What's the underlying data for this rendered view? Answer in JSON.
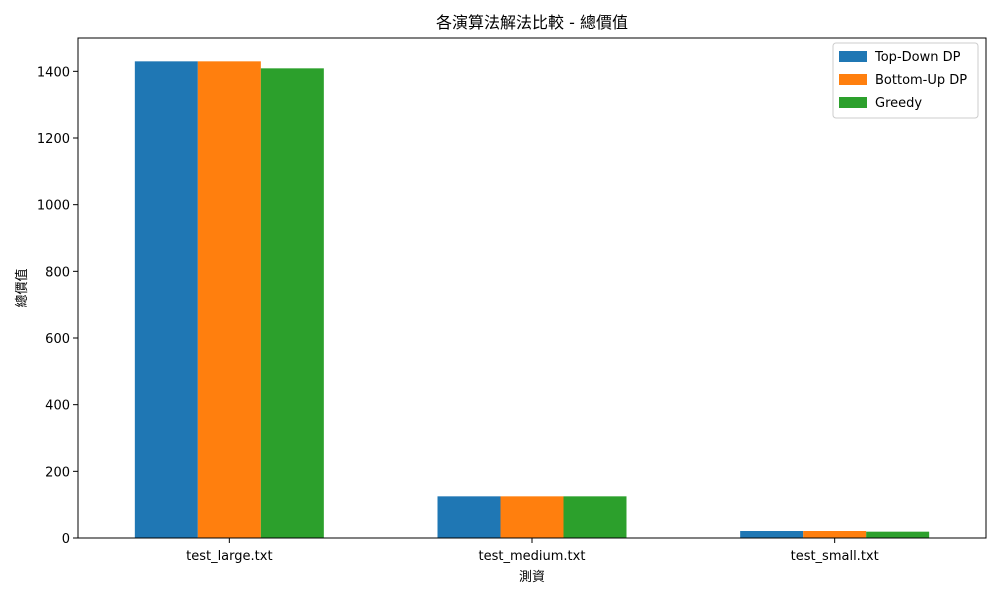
{
  "chart_data": {
    "type": "bar",
    "title": "各演算法解法比較 - 總價值",
    "xlabel": "測資",
    "ylabel": "總價值",
    "categories": [
      "test_large.txt",
      "test_medium.txt",
      "test_small.txt"
    ],
    "series": [
      {
        "name": "Top-Down DP",
        "color": "#1f77b4",
        "values": [
          1430,
          125,
          21
        ]
      },
      {
        "name": "Bottom-Up DP",
        "color": "#ff7f0e",
        "values": [
          1430,
          125,
          21
        ]
      },
      {
        "name": "Greedy",
        "color": "#2ca02c",
        "values": [
          1409,
          125,
          19
        ]
      }
    ],
    "ylim": [
      0,
      1500
    ],
    "yticks": [
      0,
      200,
      400,
      600,
      800,
      1000,
      1200,
      1400
    ],
    "grid": false,
    "legend_position": "top-right"
  }
}
